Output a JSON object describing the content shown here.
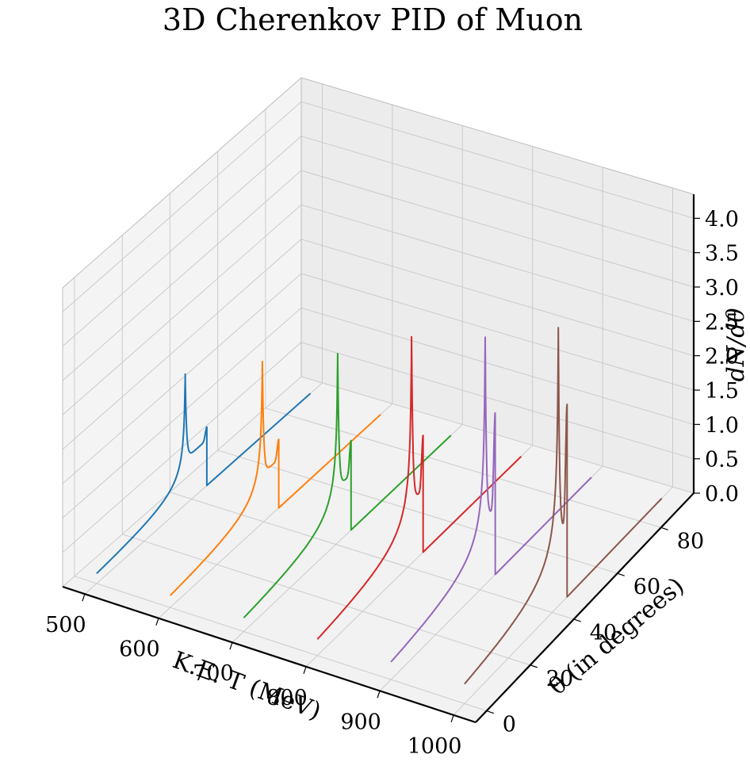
{
  "chart_data": {
    "type": "line",
    "title": "3D Cherenkov PID of Muon",
    "xlabel": "K.E. T (MeV)",
    "ylabel": "θ (in degrees)",
    "zlabel": "dN/dθ",
    "xlim": [
      470,
      1030
    ],
    "ylim": [
      -5,
      95
    ],
    "zlim": [
      0,
      4.35
    ],
    "x_ticks": [
      "500",
      "600",
      "700",
      "800",
      "900",
      "1000"
    ],
    "y_ticks": [
      "0",
      "20",
      "40",
      "60",
      "80"
    ],
    "z_ticks": [
      "0.0",
      "0.5",
      "1.0",
      "1.5",
      "2.0",
      "2.5",
      "3.0",
      "3.5",
      "4.0"
    ],
    "grid": true,
    "series": [
      {
        "x": 500,
        "color": "#1f77b4",
        "theta_c": 37.3,
        "peak1": 1.9,
        "shoulder": 0.7,
        "peak2": 0.85,
        "theta_cut": 46.4
      },
      {
        "x": 600,
        "color": "#ff7f0e",
        "theta_c": 39.4,
        "peak1": 2.35,
        "shoulder": 0.75,
        "peak2": 1.0,
        "theta_cut": 46.4
      },
      {
        "x": 700,
        "color": "#2ca02c",
        "theta_c": 40.8,
        "peak1": 2.75,
        "shoulder": 0.85,
        "peak2": 1.3,
        "theta_cut": 46.6
      },
      {
        "x": 800,
        "color": "#d62728",
        "theta_c": 41.6,
        "peak1": 3.3,
        "shoulder": 0.95,
        "peak2": 1.7,
        "theta_cut": 46.7
      },
      {
        "x": 900,
        "color": "#9467bd",
        "theta_c": 42.3,
        "peak1": 3.6,
        "shoulder": 1.0,
        "peak2": 2.35,
        "theta_cut": 46.8
      },
      {
        "x": 1000,
        "color": "#8c564b",
        "theta_c": 42.8,
        "peak1": 4.05,
        "shoulder": 1.1,
        "peak2": 2.8,
        "theta_cut": 46.8
      }
    ]
  }
}
